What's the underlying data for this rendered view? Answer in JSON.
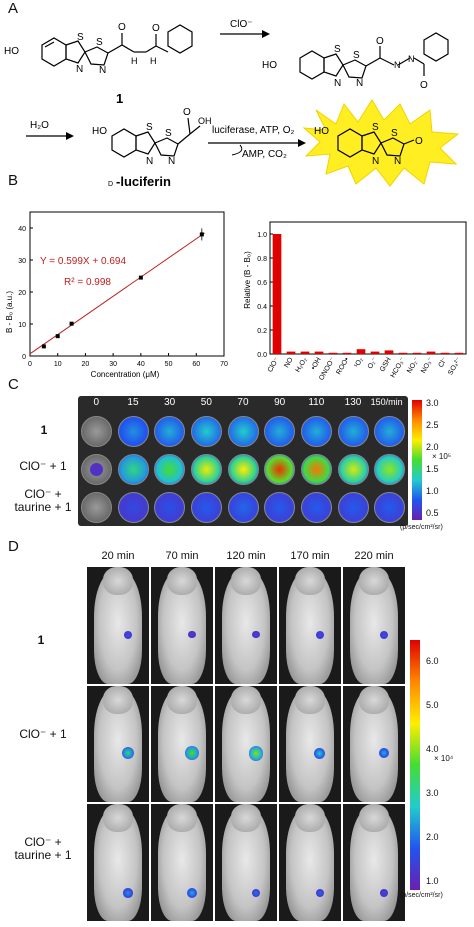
{
  "panels": {
    "a": "A",
    "b": "B",
    "c": "C",
    "d": "D"
  },
  "panel_a": {
    "oxidant": "ClO⁻",
    "compound_label": "1",
    "water": "H₂O",
    "luciferin_prefix": "D",
    "luciferin_name": "-luciferin",
    "reagents_top": "luciferase, ATP, O₂",
    "reagents_bottom": "AMP, CO₂",
    "atom_ho": "HO",
    "atom_s": "S",
    "atom_n": "N",
    "atom_o": "O",
    "atom_oh": "OH",
    "atom_h": "H",
    "atom_nh": "NH"
  },
  "chart_data": [
    {
      "type": "scatter",
      "xlabel": "Concentration (μM)",
      "ylabel": "B - B₀ (a.u.)",
      "xlim": [
        0,
        70
      ],
      "ylim": [
        0,
        45
      ],
      "xticks": [
        "0",
        "10",
        "20",
        "30",
        "40",
        "50",
        "60",
        "70"
      ],
      "yticks": [
        "0",
        "10",
        "20",
        "30",
        "40"
      ],
      "equation": "Y = 0.599X + 0.694",
      "r2": "R² = 0.998",
      "points": [
        {
          "x": 5,
          "y": 3.0
        },
        {
          "x": 10,
          "y": 6.2
        },
        {
          "x": 15,
          "y": 10.1
        },
        {
          "x": 40,
          "y": 24.5
        },
        {
          "x": 62,
          "y": 38.0
        }
      ],
      "fit": {
        "slope": 0.599,
        "intercept": 0.694,
        "x_range": [
          0,
          63
        ]
      }
    },
    {
      "type": "bar",
      "ylabel": "Relative (B - B₀)",
      "ylim": [
        0,
        1.1
      ],
      "yticks": [
        "0.0",
        "0.2",
        "0.4",
        "0.6",
        "0.8",
        "1.0"
      ],
      "categories": [
        "ClO⁻",
        "NO",
        "H₂O₂",
        "•OH",
        "ONOO⁻",
        "ROO•",
        "¹O₂",
        "O₂⁻",
        "GSH",
        "HCO₃⁻",
        "NO₂⁻",
        "NO₃⁻",
        "Cl⁻",
        "SO₄²⁻"
      ],
      "values": [
        1.0,
        0.02,
        0.02,
        0.02,
        0.01,
        0.01,
        0.04,
        0.02,
        0.03,
        0.01,
        0.01,
        0.02,
        0.01,
        0.01
      ],
      "bar_color": "#e00000"
    }
  ],
  "panel_c": {
    "time_labels": [
      "0",
      "15",
      "30",
      "50",
      "70",
      "90",
      "110",
      "130",
      "150/min"
    ],
    "rows": [
      {
        "label": "1",
        "levels": [
          0.0,
          0.25,
          0.3,
          0.35,
          0.35,
          0.3,
          0.3,
          0.3,
          0.3
        ]
      },
      {
        "label": "ClO⁻ + 1",
        "levels": [
          0.05,
          0.45,
          0.55,
          0.7,
          0.72,
          0.95,
          0.88,
          0.68,
          0.62
        ]
      },
      {
        "label": "ClO⁻ + taurine + 1",
        "levels": [
          0.0,
          0.12,
          0.14,
          0.16,
          0.18,
          0.16,
          0.16,
          0.16,
          0.16
        ]
      }
    ],
    "scale_ticks": [
      "3.0",
      "2.5",
      "2.0",
      "1.5",
      "1.0",
      "0.5"
    ],
    "scale_exponent": "× 10⁵",
    "scale_units": "(p/sec/cm²/sr)"
  },
  "panel_d": {
    "time_labels": [
      "20 min",
      "70 min",
      "120 min",
      "170 min",
      "220 min"
    ],
    "rows": [
      {
        "label": "1",
        "spots": [
          0.15,
          0.1,
          0.12,
          0.15,
          0.15
        ]
      },
      {
        "label": "ClO⁻ + 1",
        "spots": [
          0.45,
          0.55,
          0.6,
          0.35,
          0.3
        ]
      },
      {
        "label": "ClO⁻ + taurine + 1",
        "spots": [
          0.25,
          0.3,
          0.2,
          0.18,
          0.12
        ]
      }
    ],
    "scale_ticks": [
      "6.0",
      "5.0",
      "4.0",
      "3.0",
      "2.0",
      "1.0"
    ],
    "scale_exponent": "× 10⁴",
    "scale_units": "(p/sec/cm²/sr)"
  }
}
